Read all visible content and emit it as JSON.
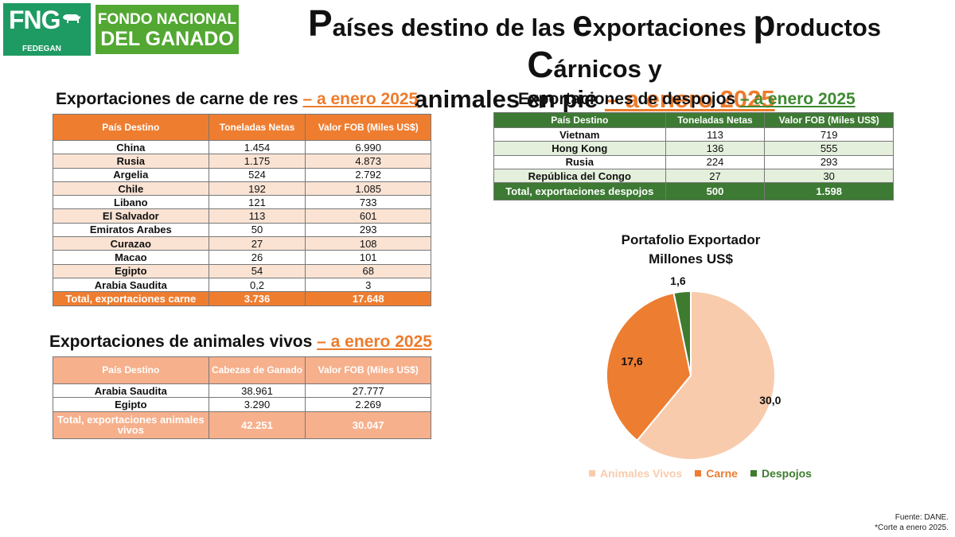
{
  "logo": {
    "abbr": "FNG",
    "sub": "FEDEGAN",
    "line1": "FONDO NACIONAL",
    "line2": "DEL GANADO"
  },
  "title": {
    "c1": "P",
    "t1": "aíses destino de las ",
    "c2": "e",
    "t2": "xportaciones ",
    "c3": "p",
    "t3": "roductos ",
    "c4": "C",
    "t4": "árnicos y",
    "line2": "animales en pie ",
    "highlight": "– a enero 2025"
  },
  "carne": {
    "heading": "Exportaciones de carne de res ",
    "heading_date": "– a enero 2025",
    "headers": [
      "País Destino",
      "Toneladas Netas",
      "Valor FOB (Miles US$)"
    ],
    "rows": [
      [
        "China",
        "1.454",
        "6.990"
      ],
      [
        "Rusia",
        "1.175",
        "4.873"
      ],
      [
        "Argelia",
        "524",
        "2.792"
      ],
      [
        "Chile",
        "192",
        "1.085"
      ],
      [
        "Libano",
        "121",
        "733"
      ],
      [
        "El Salvador",
        "113",
        "601"
      ],
      [
        "Emiratos Arabes",
        "50",
        "293"
      ],
      [
        "Curazao",
        "27",
        "108"
      ],
      [
        "Macao",
        "26",
        "101"
      ],
      [
        "Egipto",
        "54",
        "68"
      ],
      [
        "Arabia Saudita",
        "0,2",
        "3"
      ]
    ],
    "total": [
      "Total, exportaciones carne",
      "3.736",
      "17.648"
    ]
  },
  "despojos": {
    "heading": "Exportaciones de despojos ",
    "heading_date": "– a enero 2025",
    "headers": [
      "País Destino",
      "Toneladas Netas",
      "Valor FOB (Miles US$)"
    ],
    "rows": [
      [
        "Vietnam",
        "113",
        "719"
      ],
      [
        "Hong Kong",
        "136",
        "555"
      ],
      [
        "Rusia",
        "224",
        "293"
      ],
      [
        "República del Congo",
        "27",
        "30"
      ]
    ],
    "total": [
      "Total, exportaciones despojos",
      "500",
      "1.598"
    ]
  },
  "vivos": {
    "heading": "Exportaciones de animales vivos ",
    "heading_date": "– a enero 2025",
    "headers": [
      "País Destino",
      "Cabezas de Ganado",
      "Valor FOB (Miles US$)"
    ],
    "rows": [
      [
        "Arabia Saudita",
        "38.961",
        "27.777"
      ],
      [
        "Egipto",
        "3.290",
        "2.269"
      ]
    ],
    "total": [
      "Total,  exportaciones animales vivos",
      "42.251",
      "30.047"
    ]
  },
  "chart_data": {
    "type": "pie",
    "title": "Portafolio Exportador",
    "subtitle": "Millones US$",
    "categories": [
      "Animales Vivos",
      "Carne",
      "Despojos"
    ],
    "values": [
      30.0,
      17.6,
      1.6
    ],
    "labels": [
      "30,0",
      "17,6",
      "1,6"
    ],
    "colors": [
      "#f8cbad",
      "#ed7d31",
      "#3e7b2f"
    ],
    "legend": "bottom"
  },
  "colors": {
    "orange": "#ec7b2c",
    "green": "#3f8a31",
    "fng_green": "#1e9a63"
  },
  "footer": {
    "source": "Fuente: DANE.",
    "note": "*Corte a enero 2025."
  }
}
